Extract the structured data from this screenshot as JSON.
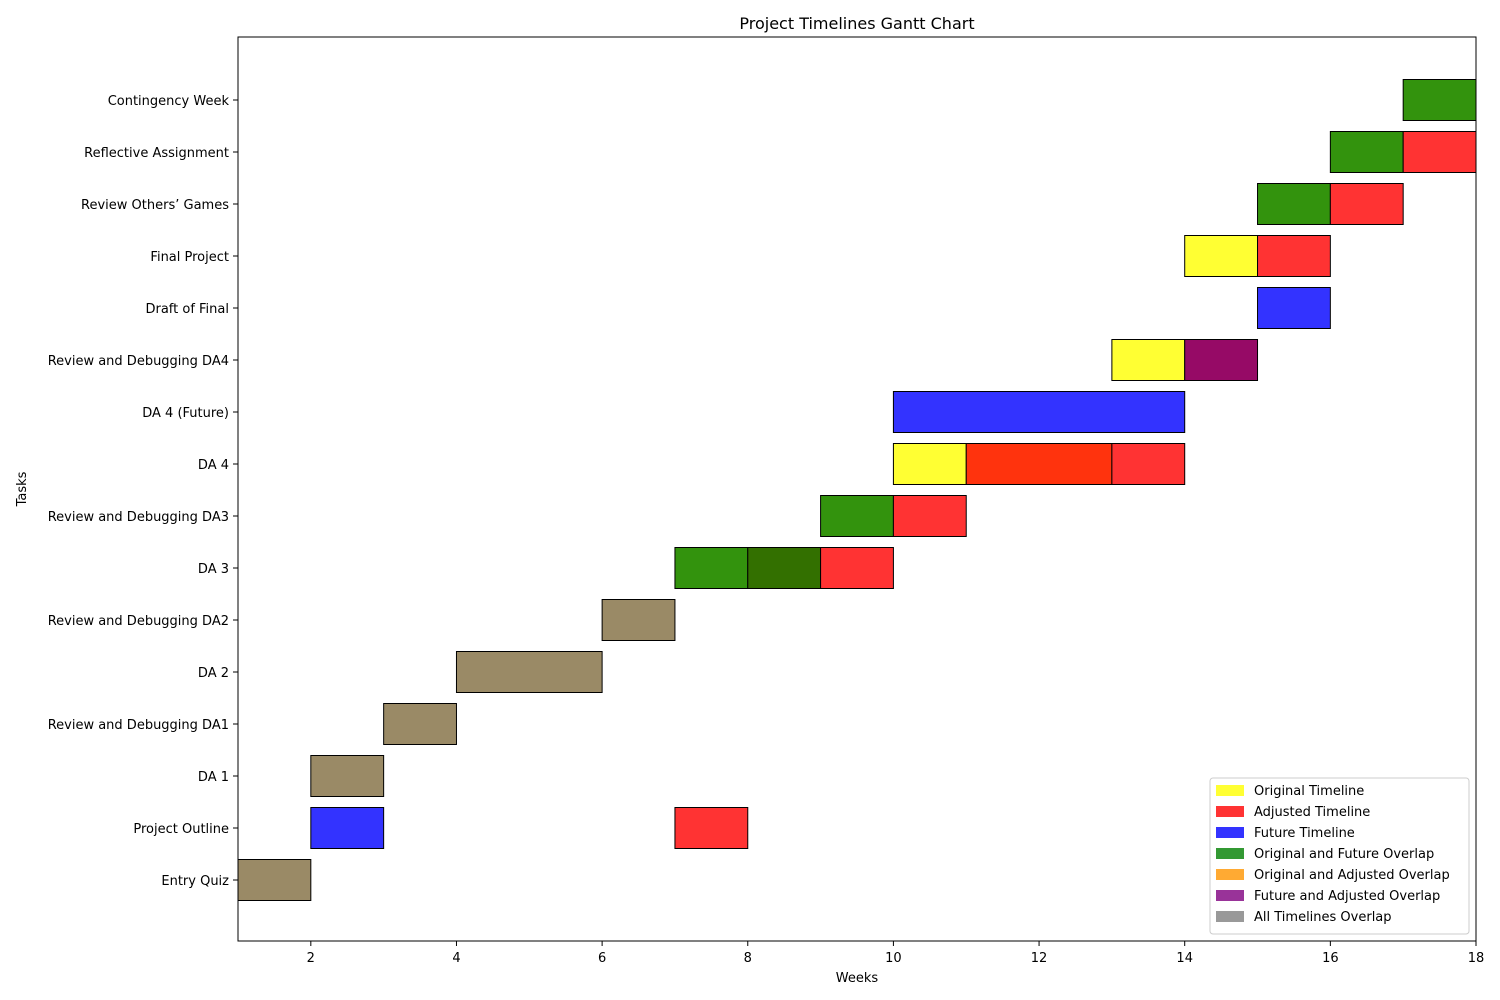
{
  "chart_data": {
    "type": "bar",
    "title": "Project Timelines Gantt Chart",
    "xlabel": "Weeks",
    "ylabel": "Tasks",
    "xlim": [
      1,
      18
    ],
    "xticks": [
      2,
      4,
      6,
      8,
      10,
      12,
      14,
      16,
      18
    ],
    "grid": false,
    "legend_position": "bottom-right",
    "tasks": [
      "Entry Quiz",
      "Project Outline",
      "DA 1",
      "Review and Debugging DA1",
      "DA 2",
      "Review and Debugging DA2",
      "DA 3",
      "Review and Debugging DA3",
      "DA 4",
      "DA 4 (Future)",
      "Review and Debugging DA4",
      "Draft of Final",
      "Final Project",
      "Review Others’ Games",
      "Reflective Assignment",
      "Contingency Week"
    ],
    "legend": [
      {
        "label": "Original Timeline",
        "color": "#ffff33"
      },
      {
        "label": "Adjusted Timeline",
        "color": "#ff3333"
      },
      {
        "label": "Future Timeline",
        "color": "#3333ff"
      },
      {
        "label": "Original and Future Overlap",
        "color": "#339933"
      },
      {
        "label": "Original and Adjusted Overlap",
        "color": "#ffaa33"
      },
      {
        "label": "Future and Adjusted Overlap",
        "color": "#993399"
      },
      {
        "label": "All Timelines Overlap",
        "color": "#999999"
      }
    ],
    "bars": [
      {
        "task": "Entry Quiz",
        "start": 1,
        "end": 2,
        "color": "#9a8a66"
      },
      {
        "task": "Project Outline",
        "start": 2,
        "end": 3,
        "color": "#3333ff"
      },
      {
        "task": "Project Outline",
        "start": 7,
        "end": 8,
        "color": "#ff3333"
      },
      {
        "task": "DA 1",
        "start": 2,
        "end": 3,
        "color": "#9a8a66"
      },
      {
        "task": "Review and Debugging DA1",
        "start": 3,
        "end": 4,
        "color": "#9a8a66"
      },
      {
        "task": "DA 2",
        "start": 4,
        "end": 6,
        "color": "#9a8a66"
      },
      {
        "task": "Review and Debugging DA2",
        "start": 6,
        "end": 7,
        "color": "#9a8a66"
      },
      {
        "task": "DA 3",
        "start": 7,
        "end": 8,
        "color": "#33930d"
      },
      {
        "task": "DA 3",
        "start": 8,
        "end": 9,
        "color": "#337000"
      },
      {
        "task": "DA 3",
        "start": 9,
        "end": 10,
        "color": "#ff3333"
      },
      {
        "task": "Review and Debugging DA3",
        "start": 9,
        "end": 10,
        "color": "#33930d"
      },
      {
        "task": "Review and Debugging DA3",
        "start": 10,
        "end": 11,
        "color": "#ff3333"
      },
      {
        "task": "DA 4",
        "start": 10,
        "end": 11,
        "color": "#ffff33"
      },
      {
        "task": "DA 4",
        "start": 11,
        "end": 13,
        "color": "#ff330d"
      },
      {
        "task": "DA 4",
        "start": 13,
        "end": 14,
        "color": "#ff3333"
      },
      {
        "task": "DA 4 (Future)",
        "start": 10,
        "end": 14,
        "color": "#3333ff"
      },
      {
        "task": "Review and Debugging DA4",
        "start": 13,
        "end": 14,
        "color": "#ffff33"
      },
      {
        "task": "Review and Debugging DA4",
        "start": 14,
        "end": 15,
        "color": "#960a66"
      },
      {
        "task": "Draft of Final",
        "start": 15,
        "end": 16,
        "color": "#3333ff"
      },
      {
        "task": "Final Project",
        "start": 14,
        "end": 15,
        "color": "#ffff33"
      },
      {
        "task": "Final Project",
        "start": 15,
        "end": 16,
        "color": "#ff3333"
      },
      {
        "task": "Review Others’ Games",
        "start": 15,
        "end": 16,
        "color": "#33930d"
      },
      {
        "task": "Review Others’ Games",
        "start": 16,
        "end": 17,
        "color": "#ff3333"
      },
      {
        "task": "Reflective Assignment",
        "start": 16,
        "end": 17,
        "color": "#33930d"
      },
      {
        "task": "Reflective Assignment",
        "start": 17,
        "end": 18,
        "color": "#ff3333"
      },
      {
        "task": "Contingency Week",
        "start": 17,
        "end": 18,
        "color": "#33930d"
      }
    ]
  }
}
